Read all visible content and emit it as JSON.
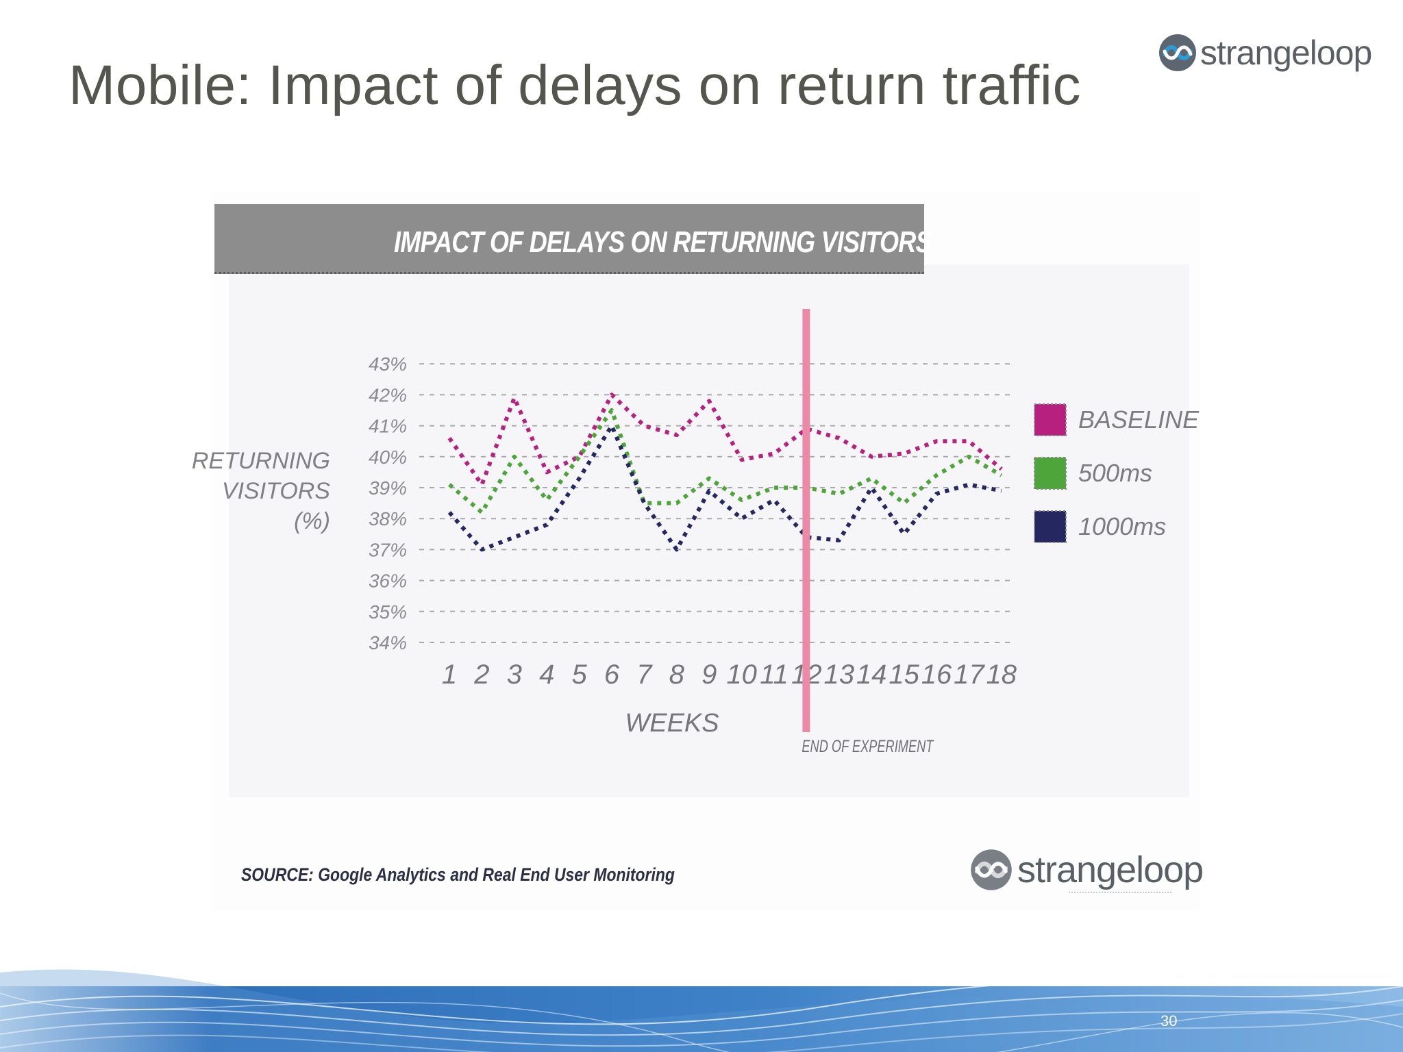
{
  "slide": {
    "title": "Mobile: Impact of delays on return traffic",
    "brand": "strangeloop",
    "source": "SOURCE: Google Analytics and Real End User Monitoring",
    "page_number": "30"
  },
  "chart_data": {
    "type": "line",
    "title": "IMPACT OF DELAYS ON RETURNING VISITORS",
    "xlabel": "WEEKS",
    "ylabel": "RETURNING VISITORS (%)",
    "ylabel_lines": [
      "RETURNING",
      "VISITORS",
      "(%)"
    ],
    "x": [
      1,
      2,
      3,
      4,
      5,
      6,
      7,
      8,
      9,
      10,
      11,
      12,
      13,
      14,
      15,
      16,
      17,
      18
    ],
    "y_ticks": [
      "43%",
      "42%",
      "41%",
      "40%",
      "39%",
      "38%",
      "37%",
      "36%",
      "35%",
      "34%"
    ],
    "ylim": [
      34,
      43
    ],
    "grid": "horizontal dashed",
    "legend_position": "right",
    "annotation": {
      "x": 12,
      "label": "END OF EXPERIMENT",
      "color": "#ea8aa6"
    },
    "series": [
      {
        "name": "BASELINE",
        "color": "#b8207f",
        "values": [
          40.6,
          39.1,
          41.9,
          39.5,
          40.0,
          42.0,
          41.0,
          40.7,
          41.8,
          39.9,
          40.1,
          40.9,
          40.6,
          40.0,
          40.1,
          40.5,
          40.5,
          39.6
        ]
      },
      {
        "name": "500ms",
        "color": "#4ea63a",
        "values": [
          39.1,
          38.2,
          40.0,
          38.6,
          40.0,
          41.5,
          38.5,
          38.5,
          39.3,
          38.6,
          39.0,
          39.0,
          38.8,
          39.3,
          38.5,
          39.4,
          40.0,
          39.4
        ]
      },
      {
        "name": "1000ms",
        "color": "#252860",
        "values": [
          38.2,
          37.0,
          37.4,
          37.8,
          39.3,
          41.0,
          38.5,
          37.0,
          38.9,
          38.0,
          38.6,
          37.4,
          37.3,
          39.0,
          37.5,
          38.8,
          39.1,
          38.9
        ]
      }
    ]
  }
}
